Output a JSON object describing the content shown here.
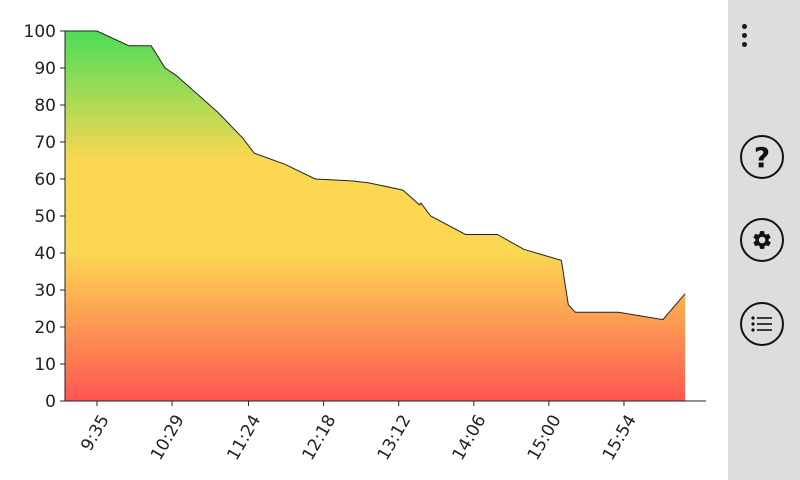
{
  "colors": {
    "top": "#4cdd58",
    "middle": "#fbd752",
    "bottom": "#ff5652",
    "panel": "#dddddd",
    "outline": "#222222"
  },
  "side_panel": {
    "icons": [
      "more-vert-icon",
      "help-icon",
      "settings-icon",
      "list-icon"
    ],
    "help_glyph": "?"
  },
  "chart_data": {
    "type": "area",
    "title": "",
    "xlabel": "",
    "ylabel": "",
    "ylim": [
      0,
      100
    ],
    "yticks": [
      0,
      10,
      20,
      30,
      40,
      50,
      60,
      70,
      80,
      90,
      100
    ],
    "xlim": [
      "9:12",
      "16:53"
    ],
    "xticks": [
      "9:35",
      "10:29",
      "11:24",
      "12:18",
      "13:12",
      "14:06",
      "15:00",
      "15:54"
    ],
    "grid": false,
    "legend": "none",
    "gradient": "green at 100, yellow around 60 to 40, red at 0",
    "points": [
      {
        "x": "9:12",
        "y": 100
      },
      {
        "x": "9:35",
        "y": 100
      },
      {
        "x": "9:58",
        "y": 96
      },
      {
        "x": "10:14",
        "y": 96
      },
      {
        "x": "10:24",
        "y": 90
      },
      {
        "x": "10:32",
        "y": 88
      },
      {
        "x": "11:02",
        "y": 78
      },
      {
        "x": "11:20",
        "y": 71
      },
      {
        "x": "11:28",
        "y": 67
      },
      {
        "x": "11:50",
        "y": 64
      },
      {
        "x": "12:12",
        "y": 60
      },
      {
        "x": "12:38",
        "y": 59.5
      },
      {
        "x": "12:50",
        "y": 59
      },
      {
        "x": "13:15",
        "y": 57
      },
      {
        "x": "13:27",
        "y": 53
      },
      {
        "x": "13:28",
        "y": 53.5
      },
      {
        "x": "13:29",
        "y": 53
      },
      {
        "x": "13:35",
        "y": 50
      },
      {
        "x": "14:00",
        "y": 45
      },
      {
        "x": "14:23",
        "y": 45
      },
      {
        "x": "14:42",
        "y": 41
      },
      {
        "x": "15:09",
        "y": 38
      },
      {
        "x": "15:14",
        "y": 26
      },
      {
        "x": "15:19",
        "y": 24
      },
      {
        "x": "15:45",
        "y": 24
      },
      {
        "x": "15:50",
        "y": 24
      },
      {
        "x": "16:22",
        "y": 22
      },
      {
        "x": "16:38",
        "y": 29
      }
    ]
  }
}
